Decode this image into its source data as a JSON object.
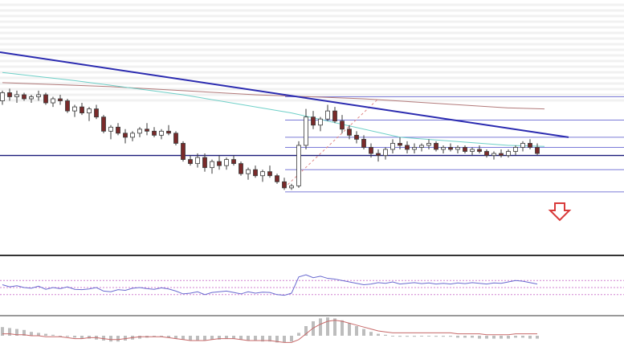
{
  "colors": {
    "background": "#ffffff",
    "watermark": "#f1f1f1",
    "candle_up": "#ffffff",
    "candle_down": "#7a2a2a",
    "candle_outline": "#3a3a3a",
    "trendline": "#2b2bb0",
    "fib_lines": "#7a7ad8",
    "support_line": "#1a1a7a",
    "ma_short": "#6fd0c8",
    "ma_long": "#b27a7a",
    "dashed_trend": "#e08a8a",
    "arrow": "#d83a3a",
    "rsi_line": "#6a6ad0",
    "rsi_levels": "#d080d0",
    "macd_line": "#c86a6a",
    "macd_hist": "#bdbdbd",
    "panel_divider": "#333333"
  },
  "icons": {
    "arrow": "down-arrow-icon"
  },
  "chart_data": {
    "type": "candlestick",
    "title": "",
    "xlabel": "",
    "ylabel": "",
    "ylim": [
      0,
      100
    ],
    "grid": false,
    "legend": "none",
    "candles": [
      [
        74,
        79,
        72,
        78
      ],
      [
        78,
        80,
        74,
        76
      ],
      [
        76,
        79,
        73,
        77
      ],
      [
        77,
        78,
        74,
        75
      ],
      [
        75,
        77,
        73,
        76
      ],
      [
        76,
        79,
        74,
        77
      ],
      [
        77,
        78,
        72,
        73
      ],
      [
        73,
        76,
        71,
        75
      ],
      [
        75,
        77,
        72,
        74
      ],
      [
        74,
        75,
        68,
        69
      ],
      [
        69,
        72,
        66,
        71
      ],
      [
        71,
        73,
        67,
        68
      ],
      [
        68,
        71,
        64,
        70
      ],
      [
        70,
        72,
        65,
        66
      ],
      [
        66,
        67,
        58,
        59
      ],
      [
        59,
        62,
        55,
        61
      ],
      [
        61,
        63,
        57,
        58
      ],
      [
        58,
        60,
        53,
        56
      ],
      [
        56,
        59,
        54,
        58
      ],
      [
        58,
        61,
        56,
        60
      ],
      [
        60,
        63,
        57,
        59
      ],
      [
        59,
        61,
        56,
        57
      ],
      [
        57,
        60,
        55,
        59
      ],
      [
        59,
        62,
        57,
        58
      ],
      [
        58,
        59,
        52,
        53
      ],
      [
        53,
        54,
        44,
        45
      ],
      [
        45,
        47,
        42,
        43
      ],
      [
        43,
        48,
        41,
        46
      ],
      [
        46,
        48,
        39,
        41
      ],
      [
        41,
        45,
        38,
        44
      ],
      [
        44,
        47,
        40,
        42
      ],
      [
        42,
        46,
        40,
        45
      ],
      [
        45,
        47,
        42,
        43
      ],
      [
        43,
        44,
        37,
        38
      ],
      [
        38,
        41,
        35,
        40
      ],
      [
        40,
        42,
        36,
        37
      ],
      [
        37,
        40,
        34,
        39
      ],
      [
        39,
        42,
        36,
        37
      ],
      [
        37,
        38,
        33,
        34
      ],
      [
        34,
        36,
        30,
        31
      ],
      [
        31,
        33,
        30,
        32
      ],
      [
        32,
        54,
        31,
        52
      ],
      [
        52,
        70,
        50,
        66
      ],
      [
        66,
        69,
        60,
        62
      ],
      [
        62,
        66,
        59,
        65
      ],
      [
        65,
        72,
        64,
        69
      ],
      [
        69,
        71,
        63,
        64
      ],
      [
        64,
        67,
        58,
        60
      ],
      [
        60,
        62,
        55,
        57
      ],
      [
        57,
        59,
        53,
        55
      ],
      [
        55,
        57,
        50,
        51
      ],
      [
        51,
        53,
        46,
        48
      ],
      [
        48,
        50,
        44,
        47
      ],
      [
        47,
        51,
        45,
        50
      ],
      [
        50,
        55,
        48,
        53
      ],
      [
        53,
        56,
        50,
        52
      ],
      [
        52,
        54,
        48,
        50
      ],
      [
        50,
        53,
        48,
        51
      ],
      [
        51,
        53,
        49,
        52
      ],
      [
        52,
        55,
        50,
        53
      ],
      [
        53,
        54,
        49,
        50
      ],
      [
        50,
        52,
        48,
        51
      ],
      [
        51,
        53,
        49,
        50
      ],
      [
        50,
        52,
        48,
        51
      ],
      [
        51,
        52,
        48,
        49
      ],
      [
        49,
        51,
        47,
        50
      ],
      [
        50,
        52,
        48,
        49
      ],
      [
        49,
        50,
        46,
        47
      ],
      [
        47,
        49,
        45,
        48
      ],
      [
        48,
        50,
        46,
        47
      ],
      [
        47,
        50,
        46,
        49
      ],
      [
        49,
        52,
        47,
        51
      ],
      [
        51,
        54,
        49,
        53
      ],
      [
        53,
        55,
        50,
        51
      ],
      [
        51,
        53,
        47,
        48
      ]
    ],
    "trendline": [
      [
        0,
        98
      ],
      [
        75,
        56
      ]
    ],
    "support_line": 47,
    "fib_levels": [
      76,
      64.5,
      56,
      51,
      40,
      29
    ],
    "ma_short": [
      [
        0,
        88
      ],
      [
        10,
        84
      ],
      [
        25,
        77
      ],
      [
        40,
        68
      ],
      [
        55,
        56
      ],
      [
        70,
        52
      ],
      [
        75,
        51.5
      ]
    ],
    "ma_long": [
      [
        0,
        83
      ],
      [
        15,
        81
      ],
      [
        35,
        77
      ],
      [
        50,
        75
      ],
      [
        70,
        70.5
      ],
      [
        75,
        70
      ]
    ],
    "dashed_trend": [
      [
        39,
        31
      ],
      [
        52,
        75
      ]
    ],
    "rsi": {
      "ylim": [
        0,
        100
      ],
      "levels": [
        30,
        50,
        70
      ],
      "values": [
        58,
        52,
        55,
        50,
        48,
        54,
        45,
        50,
        47,
        52,
        45,
        44,
        46,
        50,
        40,
        38,
        44,
        42,
        48,
        50,
        47,
        45,
        49,
        46,
        40,
        32,
        34,
        38,
        30,
        36,
        38,
        40,
        36,
        32,
        38,
        34,
        37,
        36,
        30,
        28,
        34,
        80,
        86,
        78,
        82,
        76,
        74,
        70,
        66,
        62,
        58,
        60,
        64,
        62,
        66,
        60,
        62,
        64,
        61,
        63,
        60,
        62,
        60,
        63,
        61,
        64,
        62,
        60,
        63,
        62,
        66,
        70,
        68,
        64,
        60
      ]
    },
    "macd": {
      "line": [
        0.2,
        0.2,
        0.1,
        0.1,
        0.0,
        0.0,
        -0.1,
        -0.1,
        -0.1,
        -0.2,
        -0.3,
        -0.3,
        -0.2,
        -0.2,
        -0.3,
        -0.4,
        -0.4,
        -0.3,
        -0.2,
        -0.1,
        -0.1,
        -0.1,
        -0.1,
        -0.2,
        -0.3,
        -0.4,
        -0.5,
        -0.5,
        -0.5,
        -0.4,
        -0.3,
        -0.3,
        -0.3,
        -0.4,
        -0.5,
        -0.5,
        -0.5,
        -0.5,
        -0.6,
        -0.7,
        -0.7,
        -0.4,
        0.2,
        0.8,
        1.2,
        1.5,
        1.6,
        1.5,
        1.3,
        1.1,
        0.9,
        0.7,
        0.5,
        0.4,
        0.3,
        0.3,
        0.3,
        0.3,
        0.3,
        0.3,
        0.3,
        0.3,
        0.3,
        0.2,
        0.2,
        0.2,
        0.2,
        0.1,
        0.1,
        0.1,
        0.1,
        0.2,
        0.2,
        0.2,
        0.2
      ],
      "hist": [
        0.9,
        0.8,
        0.7,
        0.6,
        0.4,
        0.3,
        0.2,
        0.1,
        0.0,
        -0.1,
        -0.2,
        -0.3,
        -0.3,
        -0.4,
        -0.5,
        -0.6,
        -0.6,
        -0.5,
        -0.4,
        -0.3,
        -0.2,
        -0.1,
        -0.1,
        -0.2,
        -0.3,
        -0.4,
        -0.5,
        -0.5,
        -0.5,
        -0.4,
        -0.4,
        -0.3,
        -0.3,
        -0.4,
        -0.5,
        -0.5,
        -0.6,
        -0.6,
        -0.7,
        -0.7,
        -0.6,
        0.3,
        1.0,
        1.5,
        1.8,
        1.9,
        1.8,
        1.6,
        1.3,
        1.0,
        0.7,
        0.4,
        0.2,
        0.1,
        0.0,
        -0.1,
        -0.1,
        -0.1,
        0.0,
        0.0,
        -0.1,
        -0.1,
        -0.1,
        -0.2,
        -0.2,
        -0.2,
        -0.3,
        -0.3,
        -0.3,
        -0.3,
        -0.3,
        -0.2,
        -0.2,
        -0.3,
        -0.3
      ]
    }
  }
}
